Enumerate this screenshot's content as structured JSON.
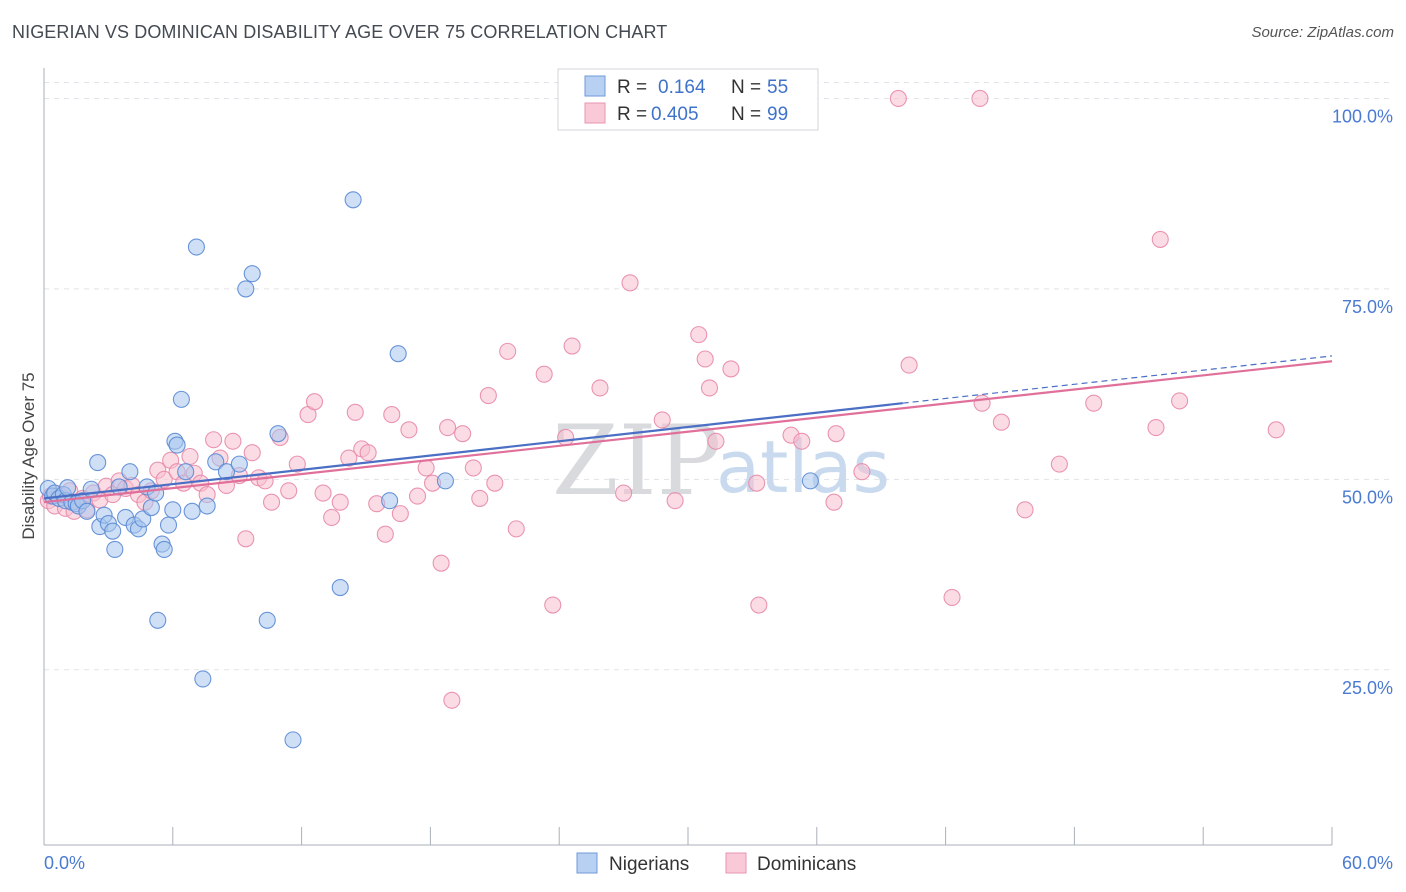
{
  "title": "NIGERIAN VS DOMINICAN DISABILITY AGE OVER 75 CORRELATION CHART",
  "source": "Source: ZipAtlas.com",
  "watermark": {
    "zip": "ZIP",
    "atlas": "atlas"
  },
  "colors": {
    "nigerians_fill": "#a8c6ee",
    "nigerians_stroke": "#5a8ad4",
    "nigerians_line": "#4a6fc4",
    "dominicans_fill": "#f7bfd0",
    "dominicans_stroke": "#e88aa8",
    "dominicans_line": "#e0709a",
    "accent_text": "#3f72c9"
  },
  "legend": {
    "r_label": "R =",
    "n_label": "N =",
    "nigerians": {
      "r": "0.164",
      "n": "55"
    },
    "dominicans": {
      "r": "0.405",
      "n": "99"
    }
  },
  "chart_data": {
    "type": "scatter",
    "title": "NIGERIAN VS DOMINICAN DISABILITY AGE OVER 75 CORRELATION CHART",
    "xlabel": "",
    "ylabel": "Disability Age Over 75",
    "xlim": [
      0,
      60
    ],
    "ylim": [
      2,
      104
    ],
    "x_tick_labels": [
      "0.0%",
      "60.0%"
    ],
    "y_ticks": [
      25,
      50,
      75,
      100
    ],
    "y_tick_labels": [
      "25.0%",
      "50.0%",
      "75.0%",
      "100.0%"
    ],
    "series": [
      {
        "name": "Nigerians",
        "trend": {
          "x0": 0,
          "y0": 47.5,
          "x1": 40,
          "y1": 60.0,
          "dashed_to_x": 60,
          "dashed_to_y": 66.2
        },
        "points": [
          [
            0.2,
            48.8
          ],
          [
            0.4,
            47.8
          ],
          [
            0.5,
            48.2
          ],
          [
            0.7,
            47.5
          ],
          [
            0.9,
            48.0
          ],
          [
            1.0,
            47.2
          ],
          [
            1.1,
            48.9
          ],
          [
            1.3,
            47.0
          ],
          [
            1.5,
            46.8
          ],
          [
            1.6,
            46.5
          ],
          [
            1.8,
            47.2
          ],
          [
            2.0,
            45.8
          ],
          [
            2.2,
            48.7
          ],
          [
            2.5,
            52.2
          ],
          [
            2.6,
            43.8
          ],
          [
            2.8,
            45.3
          ],
          [
            3.0,
            44.2
          ],
          [
            3.2,
            43.2
          ],
          [
            3.3,
            40.8
          ],
          [
            3.5,
            49.0
          ],
          [
            3.8,
            45.0
          ],
          [
            4.0,
            51.0
          ],
          [
            4.2,
            44.0
          ],
          [
            4.4,
            43.5
          ],
          [
            4.6,
            44.8
          ],
          [
            4.8,
            49.0
          ],
          [
            5.0,
            46.3
          ],
          [
            5.2,
            48.2
          ],
          [
            5.3,
            31.5
          ],
          [
            5.5,
            41.5
          ],
          [
            5.6,
            40.8
          ],
          [
            5.8,
            44.0
          ],
          [
            6.0,
            46.0
          ],
          [
            6.1,
            55.0
          ],
          [
            6.2,
            54.5
          ],
          [
            6.4,
            60.5
          ],
          [
            6.6,
            51.0
          ],
          [
            6.9,
            45.8
          ],
          [
            7.1,
            80.5
          ],
          [
            7.4,
            23.8
          ],
          [
            7.6,
            46.5
          ],
          [
            8.0,
            52.3
          ],
          [
            8.5,
            51.0
          ],
          [
            9.1,
            52.0
          ],
          [
            9.4,
            75.0
          ],
          [
            9.7,
            77.0
          ],
          [
            10.4,
            31.5
          ],
          [
            10.9,
            56.0
          ],
          [
            11.6,
            15.8
          ],
          [
            13.8,
            35.8
          ],
          [
            14.4,
            86.7
          ],
          [
            16.1,
            47.2
          ],
          [
            16.5,
            66.5
          ],
          [
            18.7,
            49.8
          ],
          [
            35.7,
            49.8
          ]
        ]
      },
      {
        "name": "Dominicans",
        "trend": {
          "x0": 0,
          "y0": 47.0,
          "x1": 60,
          "y1": 65.5
        },
        "points": [
          [
            0.2,
            47.2
          ],
          [
            0.3,
            47.8
          ],
          [
            0.5,
            46.5
          ],
          [
            0.7,
            48.0
          ],
          [
            0.9,
            47.5
          ],
          [
            1.0,
            46.2
          ],
          [
            1.2,
            48.5
          ],
          [
            1.4,
            45.8
          ],
          [
            1.6,
            47.0
          ],
          [
            1.8,
            47.5
          ],
          [
            2.0,
            46.0
          ],
          [
            2.3,
            48.2
          ],
          [
            2.6,
            47.3
          ],
          [
            2.9,
            49.1
          ],
          [
            3.2,
            48.0
          ],
          [
            3.5,
            49.8
          ],
          [
            3.8,
            48.8
          ],
          [
            4.1,
            49.2
          ],
          [
            4.4,
            48.0
          ],
          [
            4.7,
            47.0
          ],
          [
            5.0,
            48.5
          ],
          [
            5.3,
            51.2
          ],
          [
            5.6,
            50.0
          ],
          [
            5.9,
            52.5
          ],
          [
            6.2,
            51.0
          ],
          [
            6.5,
            49.5
          ],
          [
            6.8,
            53.0
          ],
          [
            7.0,
            50.8
          ],
          [
            7.3,
            49.5
          ],
          [
            7.6,
            48.0
          ],
          [
            7.9,
            55.2
          ],
          [
            8.2,
            52.8
          ],
          [
            8.5,
            49.2
          ],
          [
            8.8,
            55.0
          ],
          [
            9.1,
            50.5
          ],
          [
            9.4,
            42.2
          ],
          [
            9.7,
            53.5
          ],
          [
            10.0,
            50.2
          ],
          [
            10.3,
            49.8
          ],
          [
            10.6,
            47.0
          ],
          [
            11.0,
            55.5
          ],
          [
            11.4,
            48.5
          ],
          [
            11.8,
            52.0
          ],
          [
            12.3,
            58.5
          ],
          [
            12.6,
            60.2
          ],
          [
            13.0,
            48.2
          ],
          [
            13.4,
            45.0
          ],
          [
            13.8,
            47.0
          ],
          [
            14.2,
            52.8
          ],
          [
            14.5,
            58.8
          ],
          [
            14.8,
            54.0
          ],
          [
            15.1,
            53.5
          ],
          [
            15.5,
            46.8
          ],
          [
            15.9,
            42.8
          ],
          [
            16.2,
            58.5
          ],
          [
            16.6,
            45.5
          ],
          [
            17.0,
            56.5
          ],
          [
            17.4,
            47.8
          ],
          [
            17.8,
            51.5
          ],
          [
            18.1,
            49.5
          ],
          [
            18.5,
            39.0
          ],
          [
            18.8,
            56.8
          ],
          [
            19.0,
            21.0
          ],
          [
            19.5,
            56.0
          ],
          [
            20.0,
            51.5
          ],
          [
            20.3,
            47.5
          ],
          [
            20.7,
            61.0
          ],
          [
            21.0,
            49.5
          ],
          [
            21.6,
            66.8
          ],
          [
            22.0,
            43.5
          ],
          [
            23.3,
            63.8
          ],
          [
            23.7,
            33.5
          ],
          [
            24.3,
            55.5
          ],
          [
            24.6,
            67.5
          ],
          [
            25.9,
            62.0
          ],
          [
            27.0,
            48.2
          ],
          [
            27.3,
            75.8
          ],
          [
            28.8,
            57.8
          ],
          [
            29.4,
            47.2
          ],
          [
            30.5,
            69.0
          ],
          [
            30.8,
            65.8
          ],
          [
            31.0,
            62.0
          ],
          [
            31.3,
            55.0
          ],
          [
            32.0,
            64.5
          ],
          [
            33.2,
            49.5
          ],
          [
            33.3,
            33.5
          ],
          [
            34.8,
            55.8
          ],
          [
            35.3,
            55.0
          ],
          [
            36.8,
            47.0
          ],
          [
            36.9,
            56.0
          ],
          [
            38.1,
            51.0
          ],
          [
            40.3,
            65.0
          ],
          [
            42.3,
            34.5
          ],
          [
            43.6,
            100.0
          ],
          [
            43.7,
            60.0
          ],
          [
            44.6,
            57.5
          ],
          [
            45.7,
            46.0
          ],
          [
            47.3,
            52.0
          ],
          [
            48.9,
            60.0
          ]
        ],
        "extra_points": [
          [
            39.8,
            100.0
          ],
          [
            52.0,
            81.5
          ],
          [
            51.8,
            56.8
          ],
          [
            52.9,
            60.3
          ],
          [
            57.4,
            56.5
          ]
        ]
      }
    ]
  },
  "bottom_legend": {
    "nigerians": "Nigerians",
    "dominicans": "Dominicans"
  }
}
